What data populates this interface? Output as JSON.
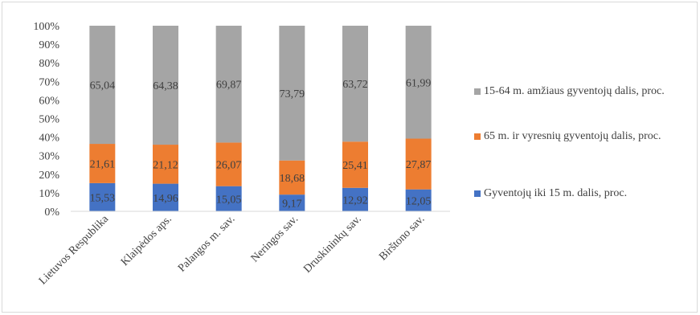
{
  "chart_data": {
    "type": "bar",
    "stacked": "percent",
    "categories": [
      "Lietuvos Respublika",
      "Klaipėdos aps.",
      "Palangos m. sav.",
      "Neringos sav.",
      "Druskininkų sav.",
      "Birštono sav."
    ],
    "series": [
      {
        "name": "Gyventojų iki 15 m. dalis, proc.",
        "color": "#4472c4",
        "values": [
          15.53,
          14.96,
          15.05,
          9.17,
          12.92,
          12.05
        ],
        "labels": [
          "15,53",
          "14,96",
          "15,05",
          "9,17",
          "12,92",
          "12,05"
        ]
      },
      {
        "name": "65 m. ir vyresnių gyventojų dalis, proc.",
        "color": "#ed7d31",
        "values": [
          21.61,
          21.12,
          26.07,
          18.68,
          25.41,
          27.87
        ],
        "labels": [
          "21,61",
          "21,12",
          "26,07",
          "18,68",
          "25,41",
          "27,87"
        ]
      },
      {
        "name": "15-64 m. amžiaus gyventojų dalis, proc.",
        "color": "#a5a5a5",
        "values": [
          65.04,
          64.38,
          69.87,
          73.79,
          63.72,
          61.99
        ],
        "labels": [
          "65,04",
          "64,38",
          "69,87",
          "73,79",
          "63,72",
          "61,99"
        ]
      }
    ],
    "yticks": [
      "0%",
      "10%",
      "20%",
      "30%",
      "40%",
      "50%",
      "60%",
      "70%",
      "80%",
      "90%",
      "100%"
    ],
    "ylim": [
      0,
      100
    ],
    "grid": false,
    "legend_position": "right",
    "legend_order": [
      2,
      1,
      0
    ]
  }
}
